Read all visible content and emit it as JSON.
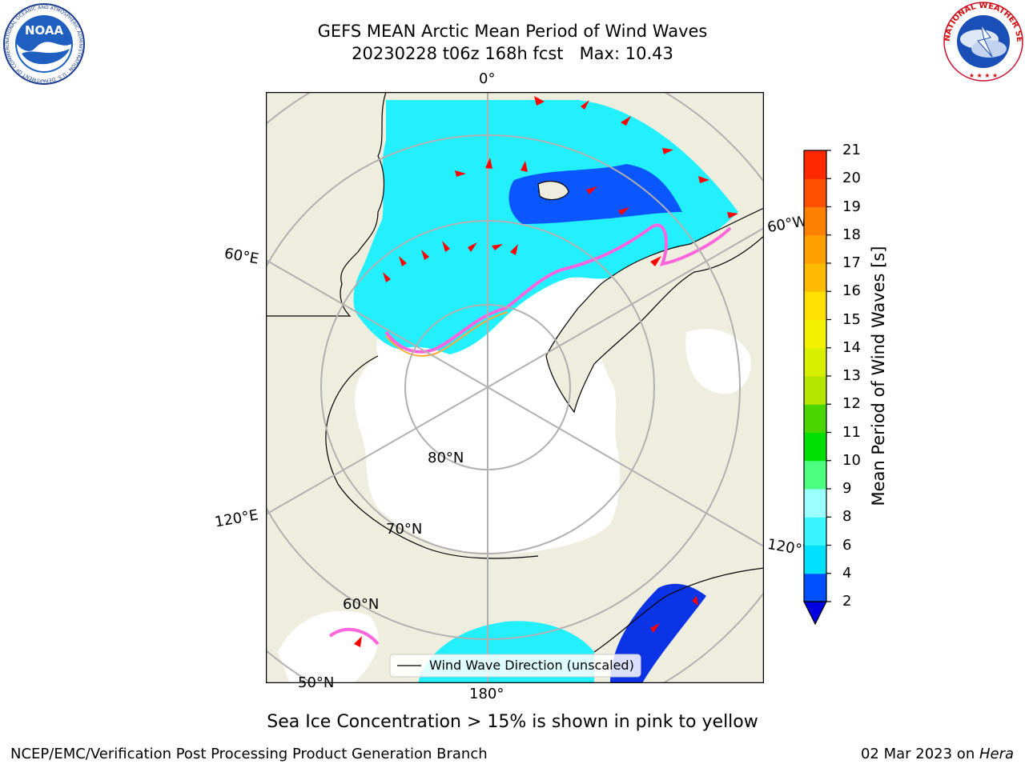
{
  "title_line1": "GEFS MEAN Arctic Mean Period of Wind Waves",
  "title_line2": "20230228 t06z 168h fcst   Max: 10.43",
  "map_labels": {
    "lon_0": "0°",
    "lon_60e": "60°E",
    "lon_120e": "120°E",
    "lon_180": "180°",
    "lon_60w": "60°W",
    "lon_120w": "120°W",
    "lat_80": "80°N",
    "lat_70": "70°N",
    "lat_60": "60°N",
    "lat_50": "50°N"
  },
  "legend_text": "Wind Wave Direction (unscaled)",
  "colorbar": {
    "label": "Mean Period of Wind Waves [s]",
    "ticks": [
      "2",
      "4",
      "6",
      "8",
      "9",
      "10",
      "11",
      "12",
      "13",
      "14",
      "15",
      "16",
      "17",
      "18",
      "19",
      "20",
      "21"
    ],
    "colors": [
      "#0050ff",
      "#00e0ff",
      "#38f5ff",
      "#9cffff",
      "#4cff80",
      "#00e000",
      "#4cd600",
      "#b4e600",
      "#d8f000",
      "#f2f200",
      "#ffe000",
      "#ffbb00",
      "#ffa000",
      "#ff8000",
      "#ff5000",
      "#ff2800",
      "#ff0000"
    ],
    "extend_color": "#0000e0"
  },
  "caption": "Sea Ice Concentration > 15% is shown in pink to yellow",
  "footer_left": "NCEP/EMC/Verification Post Processing Product Generation Branch",
  "footer_date": "02 Mar 2023 on ",
  "footer_host": "Hera",
  "logos": {
    "noaa_text": "NOAA",
    "noaa_ring": "NATIONAL OCEANIC AND ATMOSPHERIC ADMINISTRATION · U.S. DEPARTMENT OF COMMERCE",
    "nws_ring": "NATIONAL WEATHER SERVICE"
  },
  "colors": {
    "land": "#efedde",
    "ocean_deep": "#0048ff",
    "ocean_mid": "#22f0ff",
    "ice_edge": "#ff66dd",
    "ice_edge2": "#ffaa33",
    "arrow": "#ff0000",
    "grid": "#b0b0b0"
  }
}
